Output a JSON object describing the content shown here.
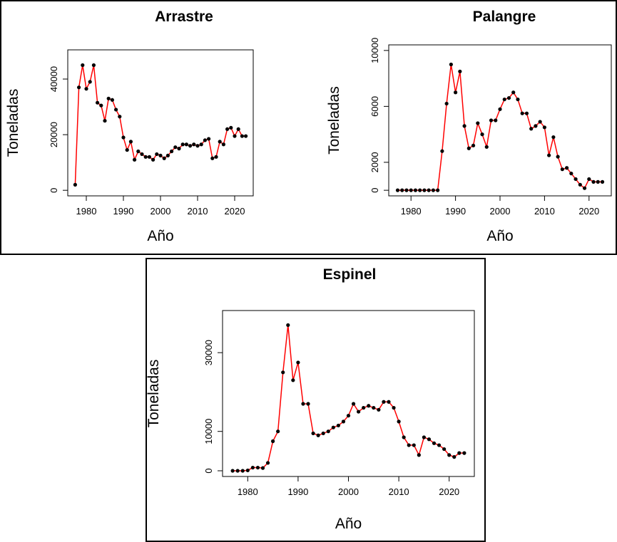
{
  "chart_data": [
    {
      "type": "line",
      "title": "Arrastre",
      "xlabel": "Año",
      "ylabel": "Toneladas",
      "x": [
        1977,
        1978,
        1979,
        1980,
        1981,
        1982,
        1983,
        1984,
        1985,
        1986,
        1987,
        1988,
        1989,
        1990,
        1991,
        1992,
        1993,
        1994,
        1995,
        1996,
        1997,
        1998,
        1999,
        2000,
        2001,
        2002,
        2003,
        2004,
        2005,
        2006,
        2007,
        2008,
        2009,
        2010,
        2011,
        2012,
        2013,
        2014,
        2015,
        2016,
        2017,
        2018,
        2019,
        2020,
        2021,
        2022,
        2023
      ],
      "series": [
        {
          "color": "#ff0000",
          "marker_color": "#000000",
          "values": [
            2000,
            37000,
            45000,
            36500,
            39000,
            45000,
            31500,
            30500,
            25000,
            33000,
            32500,
            29000,
            26500,
            19000,
            14500,
            17500,
            11000,
            14000,
            13000,
            12000,
            12000,
            11000,
            13000,
            12500,
            11500,
            12500,
            14000,
            15500,
            15000,
            16500,
            16500,
            16000,
            16500,
            16000,
            16500,
            18000,
            18500,
            11500,
            12000,
            17500,
            16500,
            22000,
            22500,
            19500,
            22000,
            19500,
            19500
          ]
        }
      ],
      "xlim": [
        1975,
        2025
      ],
      "ylim": [
        -2000,
        50500
      ],
      "xticks": [
        1980,
        1990,
        2000,
        2010,
        2020
      ],
      "yticks": [
        0,
        20000,
        40000
      ]
    },
    {
      "type": "line",
      "title": "Palangre",
      "xlabel": "Año",
      "ylabel": "Toneladas",
      "x": [
        1977,
        1978,
        1979,
        1980,
        1981,
        1982,
        1983,
        1984,
        1985,
        1986,
        1987,
        1988,
        1989,
        1990,
        1991,
        1992,
        1993,
        1994,
        1995,
        1996,
        1997,
        1998,
        1999,
        2000,
        2001,
        2002,
        2003,
        2004,
        2005,
        2006,
        2007,
        2008,
        2009,
        2010,
        2011,
        2012,
        2013,
        2014,
        2015,
        2016,
        2017,
        2018,
        2019,
        2020,
        2021,
        2022,
        2023
      ],
      "series": [
        {
          "color": "#ff0000",
          "marker_color": "#000000",
          "values": [
            0,
            0,
            0,
            0,
            0,
            0,
            0,
            0,
            0,
            0,
            2800,
            6200,
            9000,
            7000,
            8500,
            4600,
            3000,
            3200,
            4800,
            4000,
            3100,
            5000,
            5000,
            5800,
            6500,
            6600,
            7000,
            6500,
            5500,
            5500,
            4400,
            4600,
            4900,
            4500,
            2500,
            3800,
            2400,
            1500,
            1600,
            1200,
            800,
            400,
            150,
            800,
            600,
            600,
            600
          ]
        }
      ],
      "xlim": [
        1975,
        2025
      ],
      "ylim": [
        -400,
        10400
      ],
      "xticks": [
        1980,
        1990,
        2000,
        2010,
        2020
      ],
      "yticks": [
        0,
        2000,
        6000,
        10000
      ]
    },
    {
      "type": "line",
      "title": "Espinel",
      "xlabel": "Año",
      "ylabel": "Toneladas",
      "x": [
        1977,
        1978,
        1979,
        1980,
        1981,
        1982,
        1983,
        1984,
        1985,
        1986,
        1987,
        1988,
        1989,
        1990,
        1991,
        1992,
        1993,
        1994,
        1995,
        1996,
        1997,
        1998,
        1999,
        2000,
        2001,
        2002,
        2003,
        2004,
        2005,
        2006,
        2007,
        2008,
        2009,
        2010,
        2011,
        2012,
        2013,
        2014,
        2015,
        2016,
        2017,
        2018,
        2019,
        2020,
        2021,
        2022,
        2023
      ],
      "series": [
        {
          "color": "#ff0000",
          "marker_color": "#000000",
          "values": [
            0,
            0,
            0,
            100,
            800,
            800,
            700,
            2000,
            7500,
            10000,
            25000,
            37000,
            23000,
            27500,
            17000,
            17000,
            9500,
            9000,
            9500,
            10000,
            11000,
            11500,
            12500,
            14000,
            17000,
            15000,
            16000,
            16500,
            16000,
            15500,
            17500,
            17500,
            16000,
            12500,
            8500,
            6500,
            6500,
            4000,
            8500,
            8000,
            7000,
            6500,
            5500,
            4000,
            3500,
            4500,
            4500
          ]
        }
      ],
      "xlim": [
        1975,
        2025
      ],
      "ylim": [
        -1450,
        40700
      ],
      "xticks": [
        1980,
        1990,
        2000,
        2010,
        2020
      ],
      "yticks": [
        0,
        10000,
        30000
      ]
    }
  ]
}
